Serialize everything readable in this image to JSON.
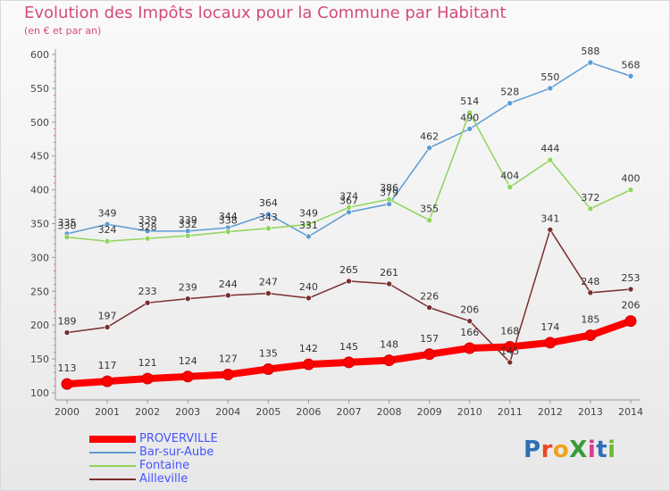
{
  "header": {
    "title": "Evolution des Impôts locaux pour la Commune par Habitant",
    "subtitle": "(en € et par an)"
  },
  "brand": {
    "text": "ProXiti",
    "letter_colors": [
      "#2e6fb8",
      "#e8492a",
      "#f0a21c",
      "#3a9a3a",
      "#d93b8f",
      "#2e6fb8",
      "#6cba2e"
    ]
  },
  "chart_data": {
    "type": "line",
    "title": "Evolution des Impôts locaux pour la Commune par Habitant",
    "subtitle": "(en € et par an)",
    "xlabel": "",
    "ylabel": "",
    "x": [
      "2000",
      "2001",
      "2002",
      "2003",
      "2004",
      "2005",
      "2006",
      "2007",
      "2008",
      "2009",
      "2010",
      "2011",
      "2012",
      "2013",
      "2014"
    ],
    "ylim": [
      100,
      600
    ],
    "yticks": [
      100,
      150,
      200,
      250,
      300,
      350,
      400,
      450,
      500,
      550,
      600
    ],
    "grid": false,
    "legend_position": "bottom-left",
    "series": [
      {
        "name": "PROVERVILLE",
        "color": "#ff0000",
        "values": [
          113,
          117,
          121,
          124,
          127,
          135,
          142,
          145,
          148,
          157,
          166,
          168,
          174,
          185,
          206
        ],
        "labels": [
          "113",
          "117",
          "121",
          "124",
          "127",
          "135",
          "142",
          "145",
          "148",
          "157",
          "166",
          "168",
          "174",
          "185",
          "206"
        ]
      },
      {
        "name": "Bar-sur-Aube",
        "color": "#5b9bd5",
        "values": [
          335,
          349,
          339,
          339,
          344,
          364,
          331,
          367,
          379,
          462,
          490,
          528,
          550,
          588,
          568
        ],
        "labels": [
          "335",
          "349",
          "339",
          "339",
          "344",
          "364",
          "331",
          "367",
          "379",
          "462",
          "490",
          "528",
          "550",
          "588",
          "568"
        ]
      },
      {
        "name": "Fontaine",
        "color": "#8ed45a",
        "values": [
          330,
          324,
          328,
          332,
          338,
          343,
          349,
          374,
          386,
          355,
          514,
          404,
          444,
          372,
          400
        ],
        "labels": [
          "330",
          "324",
          "328",
          "332",
          "338",
          "343",
          "349",
          "374",
          "386",
          "355",
          "514",
          "404",
          "444",
          "372",
          "400"
        ]
      },
      {
        "name": "Ailleville",
        "color": "#7a2e2e",
        "values": [
          189,
          197,
          233,
          239,
          244,
          247,
          240,
          265,
          261,
          226,
          206,
          145,
          341,
          248,
          253
        ],
        "labels": [
          "189",
          "197",
          "233",
          "239",
          "244",
          "247",
          "240",
          "265",
          "261",
          "226",
          "206",
          "145",
          "341",
          "248",
          "253"
        ]
      }
    ]
  }
}
